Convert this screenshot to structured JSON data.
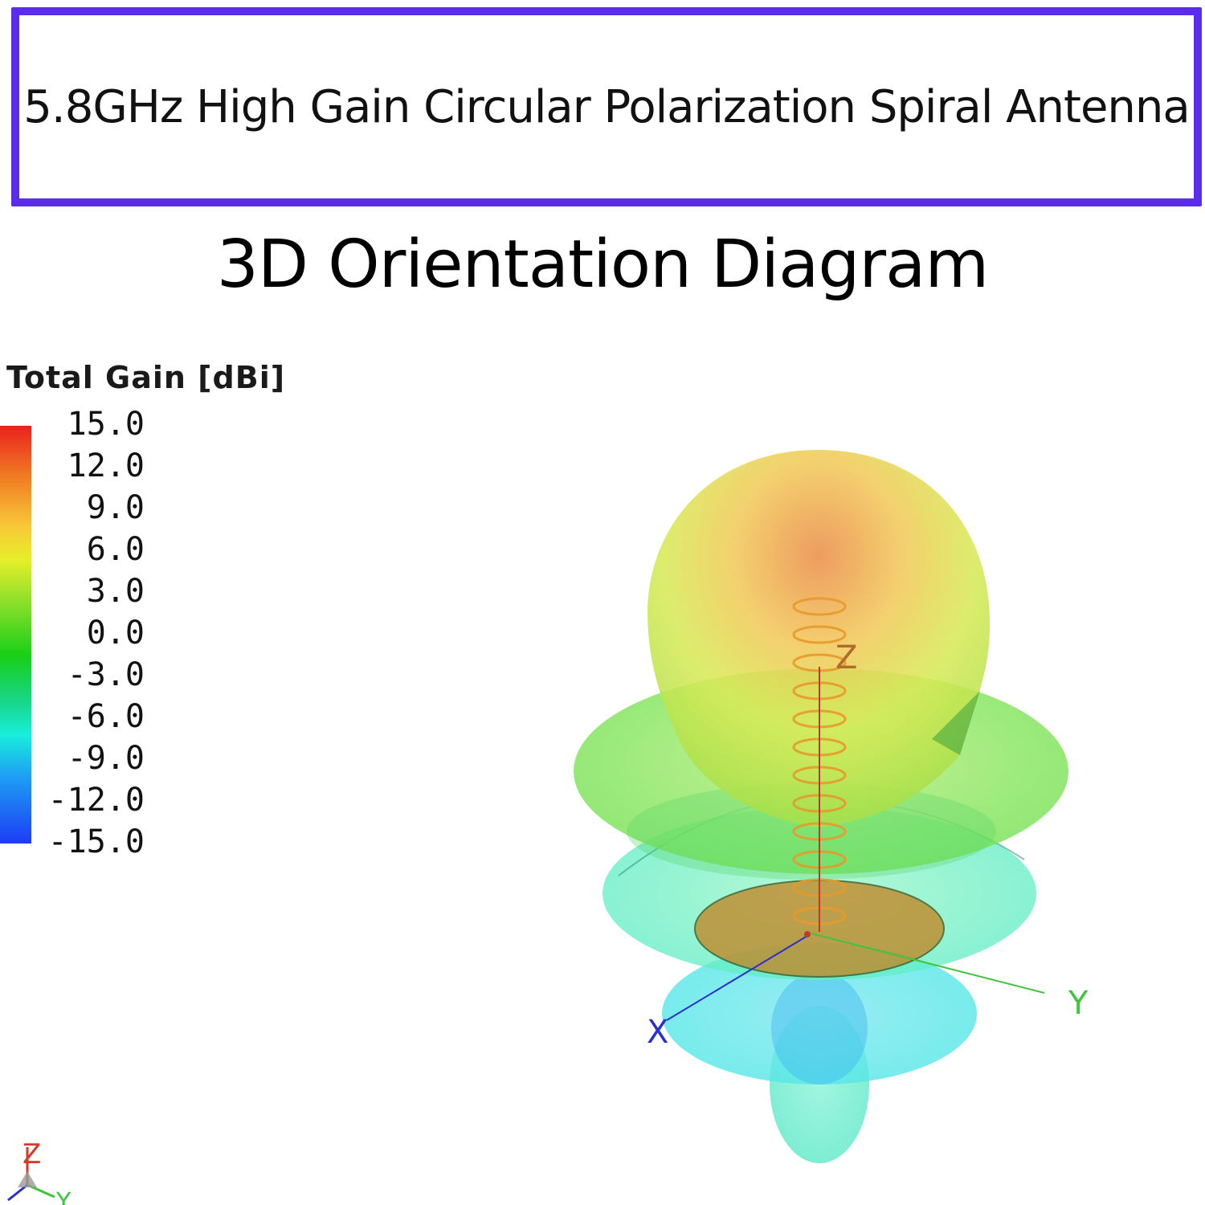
{
  "header": {
    "title": "5.8GHz High Gain Circular Polarization Spiral Antenna"
  },
  "subtitle": "3D Orientation Diagram",
  "legend": {
    "title": "Total Gain [dBi]",
    "ticks": [
      "15.0",
      "12.0",
      "9.0",
      "6.0",
      "3.0",
      "0.0",
      "-3.0",
      "-6.0",
      "-9.0",
      "-12.0",
      "-15.0"
    ]
  },
  "axes": {
    "x_label": "X",
    "y_label": "Y",
    "z_label": "Z"
  },
  "mini_axes": {
    "z_label": "Z",
    "y_label": "Y"
  },
  "colors": {
    "frame": "#5b2de6",
    "gain_max": "#e8221e",
    "gain_min": "#1d3cf4",
    "x_axis": "#2a2fd0",
    "y_axis": "#3ec43e",
    "z_axis": "#c0392b"
  }
}
